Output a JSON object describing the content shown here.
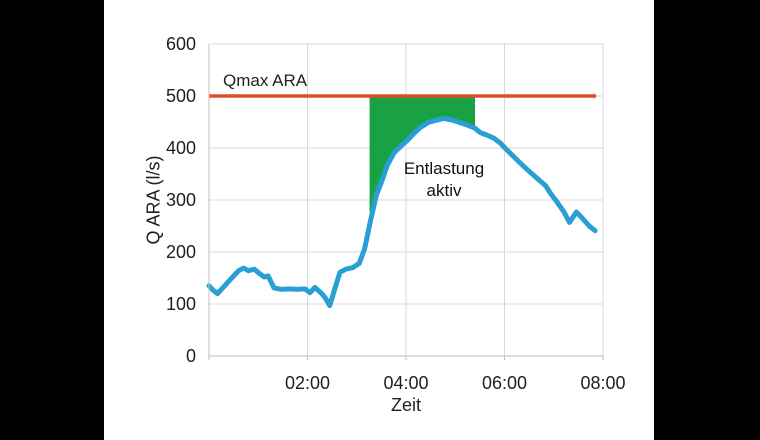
{
  "page": {
    "background_color": "#000000",
    "panel_color": "#ffffff",
    "text_color": "#1f1f1f",
    "grid_color": "#d9d9d9",
    "axis_color": "#bfbfbf"
  },
  "chart_data": {
    "type": "line",
    "title": "",
    "xlabel": "Zeit",
    "ylabel": "Q ARA (l/s)",
    "xlim": [
      0,
      8
    ],
    "ylim": [
      0,
      600
    ],
    "grid": true,
    "xticks": [
      {
        "t": 2,
        "label": "02:00"
      },
      {
        "t": 4,
        "label": "04:00"
      },
      {
        "t": 6,
        "label": "06:00"
      },
      {
        "t": 8,
        "label": "08:00"
      }
    ],
    "yticks": [
      0,
      100,
      200,
      300,
      400,
      500,
      600
    ],
    "series": [
      {
        "name": "Q ARA",
        "color": "#2a9fd4",
        "line_width": 5,
        "points": [
          [
            0.0,
            135
          ],
          [
            0.08,
            127
          ],
          [
            0.17,
            120
          ],
          [
            0.3,
            133
          ],
          [
            0.45,
            149
          ],
          [
            0.6,
            164
          ],
          [
            0.7,
            169
          ],
          [
            0.8,
            164
          ],
          [
            0.92,
            167
          ],
          [
            1.02,
            159
          ],
          [
            1.12,
            152
          ],
          [
            1.2,
            154
          ],
          [
            1.32,
            131
          ],
          [
            1.48,
            128
          ],
          [
            1.65,
            129
          ],
          [
            1.8,
            128
          ],
          [
            1.95,
            129
          ],
          [
            2.05,
            122
          ],
          [
            2.15,
            132
          ],
          [
            2.28,
            121
          ],
          [
            2.36,
            112
          ],
          [
            2.45,
            97
          ],
          [
            2.56,
            131
          ],
          [
            2.66,
            161
          ],
          [
            2.78,
            167
          ],
          [
            2.92,
            170
          ],
          [
            3.05,
            178
          ],
          [
            3.16,
            206
          ],
          [
            3.28,
            260
          ],
          [
            3.4,
            310
          ],
          [
            3.5,
            334
          ],
          [
            3.62,
            367
          ],
          [
            3.76,
            391
          ],
          [
            3.9,
            404
          ],
          [
            4.02,
            414
          ],
          [
            4.16,
            428
          ],
          [
            4.3,
            440
          ],
          [
            4.45,
            449
          ],
          [
            4.6,
            453
          ],
          [
            4.76,
            457
          ],
          [
            4.92,
            454
          ],
          [
            5.06,
            450
          ],
          [
            5.22,
            445
          ],
          [
            5.4,
            438
          ],
          [
            5.5,
            430
          ],
          [
            5.64,
            425
          ],
          [
            5.78,
            419
          ],
          [
            5.92,
            409
          ],
          [
            6.02,
            399
          ],
          [
            6.16,
            386
          ],
          [
            6.32,
            371
          ],
          [
            6.48,
            357
          ],
          [
            6.66,
            342
          ],
          [
            6.84,
            327
          ],
          [
            6.94,
            312
          ],
          [
            7.06,
            297
          ],
          [
            7.2,
            278
          ],
          [
            7.32,
            257
          ],
          [
            7.46,
            277
          ],
          [
            7.58,
            265
          ],
          [
            7.72,
            250
          ],
          [
            7.84,
            241
          ]
        ]
      }
    ],
    "qmax_line": {
      "label": "Qmax ARA",
      "value": 500,
      "color": "#e04a2b",
      "line_width": 3.5,
      "t_start": 0,
      "t_end": 7.86
    },
    "relief_area": {
      "label": "Entlastung aktiv",
      "color": "#18a244",
      "t_start": 3.26,
      "t_end": 5.4,
      "upper_value": 500
    }
  }
}
